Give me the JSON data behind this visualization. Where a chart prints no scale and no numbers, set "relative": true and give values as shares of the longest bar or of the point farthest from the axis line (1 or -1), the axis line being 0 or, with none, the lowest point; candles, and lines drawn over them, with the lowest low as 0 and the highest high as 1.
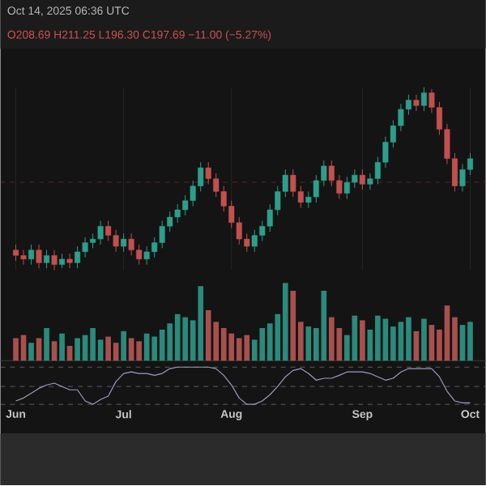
{
  "chart_data": [
    {
      "type": "candlestick",
      "relative": true,
      "grid": "x",
      "annotations": [
        "Oct 14, 2025 06:36 UTC",
        "O208.69 H211.25 L196.30 C197.69 −11.00 (−5.27%)"
      ],
      "categories": [
        null,
        null,
        null,
        null,
        null,
        null,
        null,
        null,
        null,
        null,
        null,
        null,
        null,
        null,
        null,
        null,
        null,
        null,
        null,
        null,
        null,
        null,
        null,
        null,
        null,
        null,
        null,
        null,
        null,
        null,
        null,
        null,
        null,
        null,
        null,
        null,
        null,
        null,
        null,
        null,
        null,
        null,
        null,
        null,
        null,
        null,
        null,
        null,
        null,
        null,
        null,
        null,
        null,
        null,
        null,
        null,
        null,
        null,
        null,
        null
      ],
      "ohlc": [
        [
          0.11,
          0.14,
          0.05,
          0.08
        ],
        [
          0.08,
          0.11,
          0.03,
          0.06
        ],
        [
          0.06,
          0.14,
          0.03,
          0.11
        ],
        [
          0.11,
          0.14,
          0.01,
          0.04
        ],
        [
          0.04,
          0.11,
          0.01,
          0.08
        ],
        [
          0.08,
          0.11,
          0.0,
          0.03
        ],
        [
          0.03,
          0.09,
          0.01,
          0.06
        ],
        [
          0.06,
          0.09,
          0.01,
          0.04
        ],
        [
          0.04,
          0.13,
          0.01,
          0.1
        ],
        [
          0.1,
          0.18,
          0.07,
          0.15
        ],
        [
          0.15,
          0.2,
          0.12,
          0.17
        ],
        [
          0.17,
          0.27,
          0.14,
          0.24
        ],
        [
          0.24,
          0.27,
          0.16,
          0.19
        ],
        [
          0.19,
          0.22,
          0.1,
          0.13
        ],
        [
          0.13,
          0.2,
          0.1,
          0.17
        ],
        [
          0.17,
          0.2,
          0.08,
          0.11
        ],
        [
          0.11,
          0.14,
          0.03,
          0.06
        ],
        [
          0.06,
          0.13,
          0.03,
          0.1
        ],
        [
          0.1,
          0.18,
          0.07,
          0.15
        ],
        [
          0.15,
          0.27,
          0.12,
          0.24
        ],
        [
          0.24,
          0.32,
          0.21,
          0.29
        ],
        [
          0.29,
          0.36,
          0.26,
          0.33
        ],
        [
          0.33,
          0.41,
          0.3,
          0.38
        ],
        [
          0.38,
          0.49,
          0.35,
          0.46
        ],
        [
          0.46,
          0.59,
          0.43,
          0.56
        ],
        [
          0.56,
          0.59,
          0.47,
          0.5
        ],
        [
          0.5,
          0.53,
          0.4,
          0.43
        ],
        [
          0.43,
          0.46,
          0.32,
          0.35
        ],
        [
          0.35,
          0.38,
          0.23,
          0.26
        ],
        [
          0.26,
          0.29,
          0.14,
          0.17
        ],
        [
          0.17,
          0.2,
          0.1,
          0.13
        ],
        [
          0.13,
          0.22,
          0.1,
          0.19
        ],
        [
          0.19,
          0.27,
          0.16,
          0.24
        ],
        [
          0.24,
          0.36,
          0.21,
          0.33
        ],
        [
          0.33,
          0.46,
          0.3,
          0.43
        ],
        [
          0.43,
          0.55,
          0.4,
          0.52
        ],
        [
          0.52,
          0.55,
          0.4,
          0.43
        ],
        [
          0.43,
          0.46,
          0.34,
          0.37
        ],
        [
          0.37,
          0.43,
          0.34,
          0.4
        ],
        [
          0.4,
          0.52,
          0.37,
          0.49
        ],
        [
          0.49,
          0.6,
          0.46,
          0.57
        ],
        [
          0.57,
          0.6,
          0.46,
          0.49
        ],
        [
          0.49,
          0.52,
          0.39,
          0.42
        ],
        [
          0.42,
          0.51,
          0.39,
          0.48
        ],
        [
          0.48,
          0.55,
          0.45,
          0.52
        ],
        [
          0.52,
          0.55,
          0.44,
          0.47
        ],
        [
          0.47,
          0.53,
          0.44,
          0.5
        ],
        [
          0.5,
          0.62,
          0.47,
          0.59
        ],
        [
          0.59,
          0.73,
          0.56,
          0.7
        ],
        [
          0.7,
          0.82,
          0.67,
          0.79
        ],
        [
          0.79,
          0.91,
          0.76,
          0.88
        ],
        [
          0.88,
          0.96,
          0.85,
          0.93
        ],
        [
          0.93,
          0.96,
          0.87,
          0.9
        ],
        [
          0.9,
          1.0,
          0.87,
          0.97
        ],
        [
          0.97,
          0.99,
          0.86,
          0.89
        ],
        [
          0.89,
          0.92,
          0.74,
          0.77
        ],
        [
          0.77,
          0.8,
          0.58,
          0.61
        ],
        [
          0.61,
          0.64,
          0.43,
          0.46
        ],
        [
          0.46,
          0.58,
          0.43,
          0.55
        ],
        [
          0.55,
          0.64,
          0.52,
          0.61
        ]
      ],
      "colors": [
        "#c2504f",
        "#c2504f",
        "#2e9e8c",
        "#c2504f",
        "#2e9e8c",
        "#c2504f",
        "#2e9e8c",
        "#c2504f",
        "#2e9e8c",
        "#2e9e8c",
        "#2e9e8c",
        "#2e9e8c",
        "#c2504f",
        "#c2504f",
        "#2e9e8c",
        "#c2504f",
        "#c2504f",
        "#2e9e8c",
        "#2e9e8c",
        "#2e9e8c",
        "#2e9e8c",
        "#2e9e8c",
        "#2e9e8c",
        "#2e9e8c",
        "#2e9e8c",
        "#c2504f",
        "#c2504f",
        "#c2504f",
        "#c2504f",
        "#c2504f",
        "#c2504f",
        "#2e9e8c",
        "#2e9e8c",
        "#2e9e8c",
        "#2e9e8c",
        "#2e9e8c",
        "#c2504f",
        "#c2504f",
        "#2e9e8c",
        "#2e9e8c",
        "#2e9e8c",
        "#c2504f",
        "#c2504f",
        "#2e9e8c",
        "#2e9e8c",
        "#c2504f",
        "#2e9e8c",
        "#2e9e8c",
        "#2e9e8c",
        "#2e9e8c",
        "#2e9e8c",
        "#2e9e8c",
        "#c2504f",
        "#2e9e8c",
        "#c2504f",
        "#c2504f",
        "#c2504f",
        "#c2504f",
        "#2e9e8c",
        "#2e9e8c"
      ],
      "ref_lines": [
        {
          "axis": "y",
          "value": 0.48,
          "color": "#8a3a3a",
          "line_style": "dashed"
        }
      ]
    },
    {
      "type": "bar",
      "relative": true,
      "categories": [
        null,
        null,
        null,
        null,
        null,
        null,
        null,
        null,
        null,
        null,
        null,
        null,
        null,
        null,
        null,
        null,
        null,
        null,
        null,
        null,
        null,
        null,
        null,
        null,
        null,
        null,
        null,
        null,
        null,
        null,
        null,
        null,
        null,
        null,
        null,
        null,
        null,
        null,
        null,
        null,
        null,
        null,
        null,
        null,
        null,
        null,
        null,
        null,
        null,
        null,
        null,
        null,
        null,
        null,
        null,
        null,
        null,
        null,
        null,
        null
      ],
      "values": [
        0.29,
        0.33,
        0.23,
        0.29,
        0.42,
        0.25,
        0.35,
        0.19,
        0.29,
        0.33,
        0.42,
        0.27,
        0.31,
        0.23,
        0.38,
        0.29,
        0.25,
        0.35,
        0.31,
        0.4,
        0.48,
        0.6,
        0.56,
        0.52,
        0.96,
        0.65,
        0.5,
        0.42,
        0.35,
        0.29,
        0.33,
        0.27,
        0.42,
        0.48,
        0.6,
        1.0,
        0.9,
        0.5,
        0.44,
        0.42,
        0.9,
        0.56,
        0.42,
        0.33,
        0.58,
        0.52,
        0.4,
        0.58,
        0.54,
        0.44,
        0.5,
        0.56,
        0.38,
        0.54,
        0.46,
        0.4,
        0.71,
        0.56,
        0.46,
        0.5
      ],
      "colors": [
        "#a8504e",
        "#a8504e",
        "#2b8a7c",
        "#a8504e",
        "#2b8a7c",
        "#a8504e",
        "#2b8a7c",
        "#a8504e",
        "#2b8a7c",
        "#2b8a7c",
        "#2b8a7c",
        "#2b8a7c",
        "#a8504e",
        "#a8504e",
        "#2b8a7c",
        "#a8504e",
        "#a8504e",
        "#2b8a7c",
        "#2b8a7c",
        "#2b8a7c",
        "#2b8a7c",
        "#2b8a7c",
        "#2b8a7c",
        "#2b8a7c",
        "#2b8a7c",
        "#a8504e",
        "#a8504e",
        "#a8504e",
        "#a8504e",
        "#a8504e",
        "#a8504e",
        "#2b8a7c",
        "#2b8a7c",
        "#2b8a7c",
        "#2b8a7c",
        "#2b8a7c",
        "#a8504e",
        "#a8504e",
        "#2b8a7c",
        "#2b8a7c",
        "#2b8a7c",
        "#a8504e",
        "#a8504e",
        "#2b8a7c",
        "#2b8a7c",
        "#a8504e",
        "#2b8a7c",
        "#2b8a7c",
        "#2b8a7c",
        "#2b8a7c",
        "#2b8a7c",
        "#2b8a7c",
        "#a8504e",
        "#2b8a7c",
        "#a8504e",
        "#a8504e",
        "#a8504e",
        "#a8504e",
        "#2b8a7c",
        "#2b8a7c"
      ]
    },
    {
      "type": "line",
      "relative": true,
      "marker": "none",
      "categories": [
        "Jun",
        null,
        null,
        null,
        null,
        null,
        null,
        null,
        null,
        null,
        null,
        null,
        null,
        null,
        "Jul",
        null,
        null,
        null,
        null,
        null,
        null,
        null,
        null,
        null,
        null,
        null,
        null,
        null,
        "Aug",
        null,
        null,
        null,
        null,
        null,
        null,
        null,
        null,
        null,
        null,
        null,
        null,
        null,
        null,
        null,
        null,
        "Sep",
        null,
        null,
        null,
        null,
        null,
        null,
        null,
        null,
        null,
        null,
        null,
        null,
        null,
        "Oct"
      ],
      "series": [
        {
          "color": "#9a9cc0",
          "values": [
            0.09,
            0.17,
            0.3,
            0.43,
            0.52,
            0.57,
            0.48,
            0.39,
            0.39,
            0.09,
            0.0,
            0.13,
            0.22,
            0.61,
            0.83,
            0.87,
            0.83,
            0.83,
            0.78,
            0.83,
            0.96,
            1.0,
            1.0,
            1.0,
            1.0,
            1.0,
            0.96,
            0.78,
            0.52,
            0.17,
            0.0,
            0.0,
            0.09,
            0.26,
            0.48,
            0.74,
            0.91,
            0.96,
            0.83,
            0.65,
            0.7,
            0.7,
            0.78,
            0.87,
            0.87,
            0.87,
            0.83,
            0.74,
            0.65,
            0.7,
            0.87,
            0.96,
            0.96,
            0.96,
            0.96,
            0.74,
            0.35,
            0.09,
            0.04,
            0.04
          ]
        }
      ],
      "ref_lines": [
        {
          "axis": "y",
          "value": 1.0,
          "color": "#707070",
          "line_style": "dashed"
        },
        {
          "axis": "y",
          "value": 0.48,
          "color": "#707070",
          "line_style": "dashed"
        },
        {
          "axis": "y",
          "value": 0.0,
          "color": "#707070",
          "line_style": "dashed"
        }
      ]
    }
  ]
}
